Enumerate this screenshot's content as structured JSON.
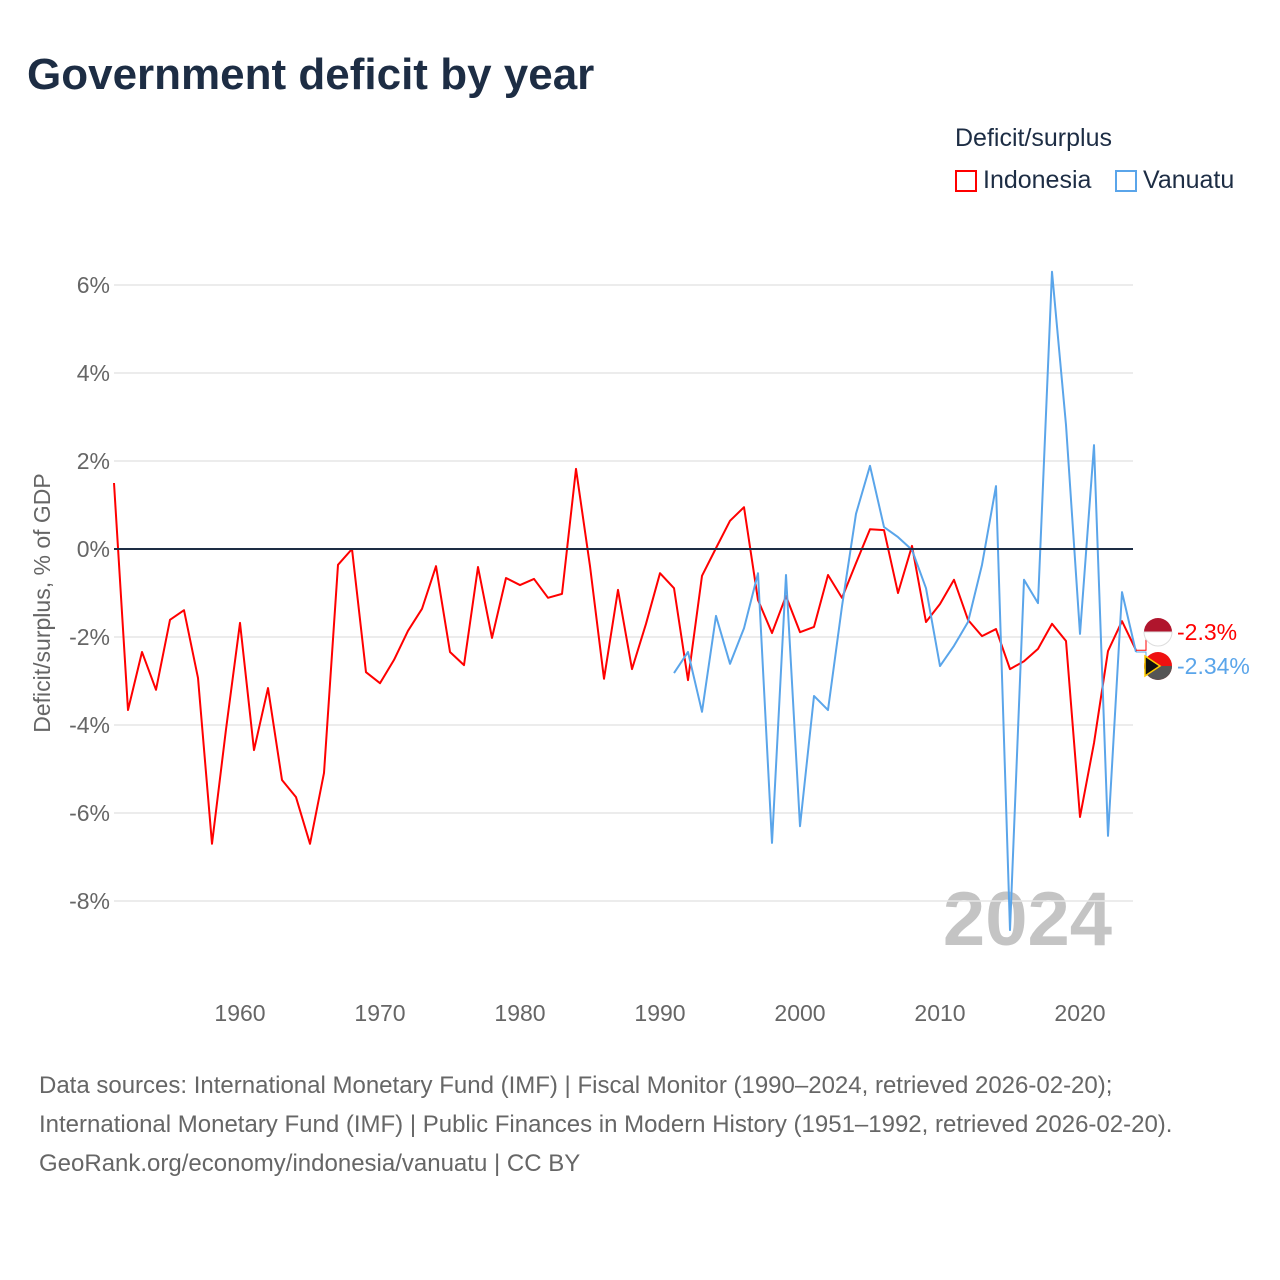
{
  "chart_data": {
    "type": "line",
    "title": "Government deficit by year",
    "ylabel": "Deficit/surplus, % of GDP",
    "xlabel": "",
    "xlim": [
      1951,
      2024
    ],
    "ylim": [
      -10,
      6.5
    ],
    "xticks": [
      1960,
      1970,
      1980,
      1990,
      2000,
      2010,
      2020
    ],
    "yticks": [
      -8,
      -6,
      -4,
      -2,
      0,
      2,
      4,
      6
    ],
    "ytick_labels": [
      "-8%",
      "-6%",
      "-4%",
      "-2%",
      "0%",
      "2%",
      "4%",
      "6%"
    ],
    "grid": true,
    "legend_title": "Deficit/surplus",
    "legend_position": "top-right",
    "watermark_year": "2024",
    "series": [
      {
        "name": "Indonesia",
        "color": "#ff0000",
        "end_label": "-2.3%",
        "start_year": 1951,
        "values": [
          1.5,
          -3.66,
          -2.34,
          -3.2,
          -1.61,
          -1.39,
          -2.93,
          -6.7,
          -4.1,
          -1.68,
          -4.57,
          -3.16,
          -5.25,
          -5.64,
          -6.7,
          -5.09,
          -0.36,
          0,
          -2.8,
          -3.05,
          -2.52,
          -1.86,
          -1.36,
          -0.39,
          -2.34,
          -2.64,
          -0.41,
          -2.02,
          -0.66,
          -0.82,
          -0.68,
          -1.11,
          -1.02,
          1.82,
          -0.39,
          -2.95,
          -0.93,
          -2.73,
          -1.7,
          -0.55,
          -0.89,
          -2.98,
          -0.61,
          0.02,
          0.64,
          0.95,
          -1.16,
          -1.91,
          -1.07,
          -1.89,
          -1.77,
          -0.59,
          -1.11,
          -0.32,
          0.45,
          0.43,
          -1.0,
          0.07,
          -1.66,
          -1.25,
          -0.7,
          -1.61,
          -1.98,
          -1.82,
          -2.73,
          -2.55,
          -2.27,
          -1.7,
          -2.09,
          -6.09,
          -4.41,
          -2.32,
          -1.64,
          -2.3
        ]
      },
      {
        "name": "Vanuatu",
        "color": "#5aa5ea",
        "end_label": "-2.34%",
        "start_year": 1991,
        "values": [
          -2.82,
          -2.34,
          -3.7,
          -1.52,
          -2.61,
          -1.8,
          -0.55,
          -6.68,
          -0.59,
          -6.3,
          -3.34,
          -3.66,
          -1.3,
          0.8,
          1.89,
          0.5,
          0.27,
          -0.02,
          -0.89,
          -2.66,
          -2.2,
          -1.66,
          -0.36,
          1.43,
          -8.66,
          -0.7,
          -1.23,
          6.3,
          2.82,
          -1.93,
          2.36,
          -6.52,
          -0.98,
          -2.34
        ]
      }
    ]
  },
  "footer": {
    "sources": "Data sources: International Monetary Fund (IMF) | Fiscal Monitor (1990–2024, retrieved 2026-02-20); International Monetary Fund (IMF) | Public Finances in Modern History (1951–1992, retrieved 2026-02-20).",
    "credit": "GeoRank.org/economy/indonesia/vanuatu | CC BY"
  }
}
